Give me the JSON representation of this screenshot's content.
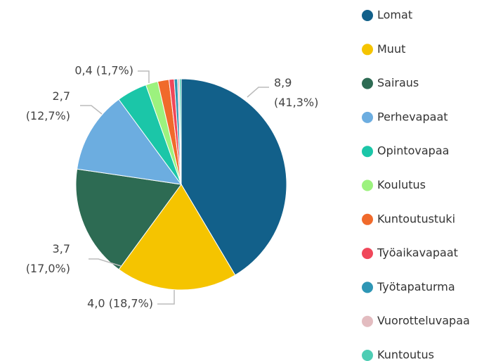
{
  "chart_data": {
    "type": "pie",
    "categories": [
      "Lomat",
      "Muut",
      "Sairaus",
      "Perhevapaat",
      "Opintovapaa",
      "Koulutus",
      "Kuntoutustuki",
      "Työaikavapaat",
      "Työtapaturma",
      "Vuorotteluvapaa",
      "Kuntoutus"
    ],
    "values": [
      8.9,
      4.0,
      3.7,
      2.7,
      1.0,
      0.4,
      0.37,
      0.17,
      0.11,
      0.06,
      0.06
    ],
    "value_labels": [
      "8,9 (41,3%)",
      "4,0 (18,7%)",
      "3,7 (17,0%)",
      "2,7 (12,7%)",
      null,
      "0,4 (1,7%)",
      null,
      null,
      null,
      null,
      null
    ],
    "colors": [
      "#12608a",
      "#f5c400",
      "#2d6b53",
      "#6cade0",
      "#1bc6a8",
      "#9cf27e",
      "#f06a2b",
      "#f0475a",
      "#2e96b5",
      "#e3bcc0",
      "#4ecdb4"
    ],
    "legend": "right"
  }
}
